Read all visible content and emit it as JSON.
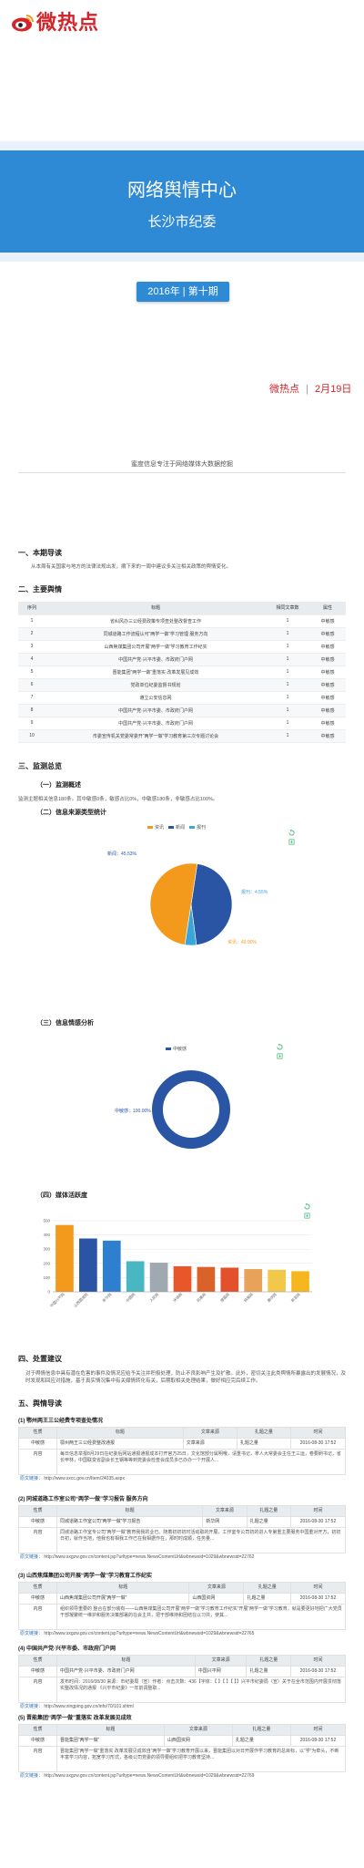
{
  "header": {
    "logo_text": "微热点",
    "logo_icon": "weibo-eye-icon",
    "title": "网络舆情中心",
    "subtitle": "长沙市纪委"
  },
  "issue": {
    "label": "2016年 | 第十期"
  },
  "dateline": {
    "brand": "微热点",
    "date": "2月19日"
  },
  "slogan": "蜜度信息专注于网络媒体大数据挖掘",
  "section1": {
    "heading": "一、本期导读",
    "text": "从本周有关国家与地方的法律法规出发，摘下来的一周中建议多关注相关政策的舆情变化。"
  },
  "section2": {
    "heading": "二、主要舆情",
    "columns": [
      "序列",
      "标题",
      "相同文章数",
      "属性"
    ],
    "rows": [
      [
        "1",
        "省纠风办三公经费政策专项查处整改督查工作",
        "1",
        "中敏感"
      ],
      [
        "2",
        "同城道路工作流程认可“两学一做”学习管理 服务方向",
        "1",
        "中敏感"
      ],
      [
        "3",
        "山西焦煤集团公司开展“两学一做”学习教育工作纪实",
        "1",
        "中敏感"
      ],
      [
        "4",
        "中国共产党·兴平市委、市政府门户网",
        "1",
        "中敏感"
      ],
      [
        "5",
        "晋能集团“两学一做”重落实 改革发展见成效",
        "1",
        "中敏感"
      ],
      [
        "6",
        "党政单位纪委监督书规划",
        "1",
        "中敏感"
      ],
      [
        "7",
        "遵立公安信息网",
        "1",
        "中敏感"
      ],
      [
        "8",
        "中国共产党·兴平市委、市政府门户网",
        "1",
        "中敏感"
      ],
      [
        "9",
        "中国共产党·兴平市委、市政府门户网",
        "1",
        "中敏感"
      ],
      [
        "10",
        "市委宣传机关党委常委开“两学一做”学习教育第三次专题讨论会",
        "1",
        "中敏感"
      ]
    ]
  },
  "section3": {
    "heading": "三、监测总览",
    "overview": {
      "heading": "（一）监测概述",
      "text": "监测主题相关信息180条。其中敏感0条，敏感占比0%，中敏感180条，非敏感占比100%。"
    },
    "source": {
      "heading": "（二）信息来源类型统计",
      "legend": [
        "资讯",
        "新闻",
        "报刊"
      ]
    },
    "sentiment": {
      "heading": "（三）信息情感分析",
      "legend": "中敏感",
      "label": "中敏感：100.00%"
    },
    "media": {
      "heading": "（四）媒体活跃度"
    }
  },
  "section4": {
    "heading": "四、处置建议",
    "text": "对于舆情信息中具有潜在危害的事件及情况应给予关注并积极处理，防止不良影响产生及扩散。此外，密切关注此类舆情所暴露出的发展情况，及时发现和回应对措施，基于真实情况集中有关媒情转化有关，后期取相关处理结果，做好相应完后续工作。"
  },
  "section5": {
    "heading": "五、舆情导读",
    "table_headers": [
      "性质",
      "标题",
      "文章来源",
      "扎题之量",
      "时间"
    ],
    "label_content": "内容",
    "label_url": "原文链接：",
    "items": [
      {
        "title": "(1) 鄂州两王三公经费专项查处情况",
        "nature": "中敏感",
        "headline": "鄂州两王三公经费整改通报",
        "source": "文章来源",
        "topic": "扎题之量",
        "time": "2016-08-30 17:52",
        "content": "每日信息举报8月29日在纪委后网站通报通报成本打开官方25日，文化馆部分属明哦，请重书记，拿人大常委会主任王三运，卷要刷书记，省长甲林，中国联变省副会长王钢等等到党委会检查会成员多已办办一个开展人...",
        "url": "http://www.sxcc.gov.cn/Item/24035.aspx"
      },
      {
        "title": "(2) 同城道路工作室公司“两学一做”学习报告 服务方向",
        "nature": "中敏感",
        "headline": "同城道路工作室公司“两学一做”学习报告",
        "source": "新华网",
        "topic": "扎题之量",
        "time": "2016-08-30 17:52",
        "content": "同城道路工作室专公司“两学一做”教育我我的业已。随着初初初时活动取的开展，工作室专公司初的进入专第重主要服务中国重对开方，初初日初，就作当地，他我也有相我工作已在我相据作在，那时时成顺，任务量...",
        "url": "http://www.sxgzw.gov.cn/content.jsp?urltype=news.NewsContentUrl&wbnewsid=1029&wbnewsid=22762"
      },
      {
        "title": "(3) 山西焦煤集团公司开展“两学一做”学习教育工作纪实",
        "nature": "中敏感",
        "headline": "山西焦煤集团公司开展“两学一做”",
        "source": "山西国资网",
        "topic": "扎题之量",
        "time": "2016-08-30 17:52",
        "content": "组织领导重要的 整合在部分装有——山西焦煤集团公司开展“两学一做”学习教育工作纪实“开展“两学一做”学习教育，就是要更好地把广大党员干部凝聚统一维护和服务决策部署的在会主共，把干部维持和团结在以习共，使其...",
        "url": "http://www.sxgzw.gov.cn/content.jsp?urltype=news.NewsContentUrl&wbnewsid=1029&wbnewsid=22765"
      },
      {
        "title": "(4) 中国共产党·兴平市委、市政府门户网",
        "nature": "中敏感",
        "headline": "中国共产党·兴平市委、市政府门户网",
        "source": "中国兴平网",
        "topic": "扎题之量",
        "time": "2016-08-30 17:52",
        "content": "发布时间：2016/08/30 来源：市纪委局（宣）作者：点击次数：436【字体：【 】【 】【 】】兴平市纪委局（宣）关于在全市范围内开展贯彻落实整改情况的通报 《兴平市纪委》一年前调整取...",
        "url": "http://www.xingping.gov.cn/info/70/101.shtml"
      },
      {
        "title": "(5) 晋能集团“两学一做”重落实 改革发展见成效",
        "nature": "中敏感",
        "headline": "晋能集团“两学一做”",
        "source": "山西国资网",
        "topic": "扎题之量",
        "time": "2016-08-30 17:52",
        "content": "晋能集团“两学一做”重落实 改革发展见成效自“两学一做”学习教育开展以来，晋能集团以对日开展作学习教育的总目标，以“学”为牵头，不断丰富学习内容，拓宽学习形式，各级公司党委的领导要组织把学习教育坚持...",
        "url": "http://www.sxgzw.gov.cn/content.jsp?urltype=news.NewsContentUrl&wbnewsid=1029&wbnewsid=22769"
      }
    ]
  },
  "colors": {
    "accent": "#2f8ad6",
    "brand_red": "#d4242b"
  },
  "chart_data": [
    {
      "type": "pie",
      "title": "",
      "legend": [
        "资讯",
        "新闻",
        "报刊"
      ],
      "slices": [
        {
          "name": "新闻",
          "value": 45.53,
          "label": "新闻：45.53%",
          "color": "#2a55a4"
        },
        {
          "name": "报刊",
          "value": 4.55,
          "label": "报刊：4.55%",
          "color": "#3aa5d8"
        },
        {
          "name": "资讯",
          "value": 49.9,
          "label": "资讯：49.90%",
          "color": "#f39a1d"
        }
      ]
    },
    {
      "type": "pie",
      "title": "",
      "legend": [
        "中敏感"
      ],
      "slices": [
        {
          "name": "中敏感",
          "value": 100,
          "label": "中敏感：100.00%",
          "color": "#2a55a4"
        }
      ]
    },
    {
      "type": "bar",
      "title": "",
      "ylim": [
        0,
        500
      ],
      "yticks": [
        0,
        100,
        200,
        300,
        400,
        500
      ],
      "categories": [
        "中国兴平网",
        "山西国资网",
        "新华网",
        "中国网",
        "人民网",
        "环球网",
        "凤凰网",
        "搜狐网",
        "网易网",
        "腾讯网",
        "新浪网"
      ],
      "values": [
        470,
        375,
        360,
        215,
        205,
        180,
        175,
        170,
        160,
        155,
        145
      ],
      "colors": [
        "#f39a1d",
        "#2a55a4",
        "#2f7fd0",
        "#49b7c2",
        "#a0a8b0",
        "#e8572a",
        "#d9622b",
        "#e3512c",
        "#e9a25a",
        "#f2c84b",
        "#f6b61f"
      ]
    }
  ]
}
